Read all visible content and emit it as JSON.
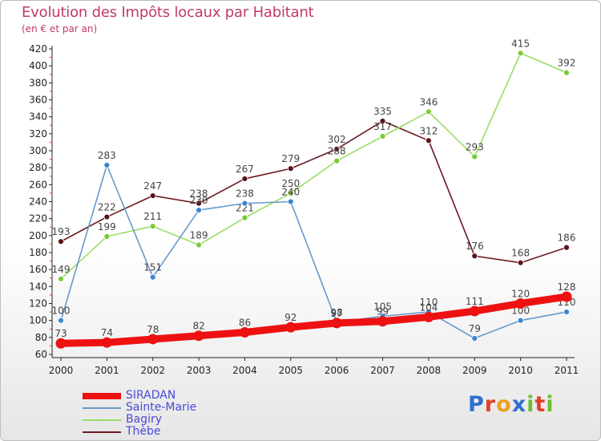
{
  "header": {
    "title": "Evolution des Impôts locaux par Habitant",
    "subtitle": "(en € et par an)"
  },
  "logo": {
    "text": "Proxiti",
    "letter_colors": [
      "#2f6fd0",
      "#e0402a",
      "#f0a020",
      "#2f6fd0",
      "#6bbf30",
      "#e0402a",
      "#6bbf30"
    ]
  },
  "chart_data": {
    "type": "line",
    "x": [
      "2000",
      "2001",
      "2002",
      "2003",
      "2004",
      "2005",
      "2006",
      "2007",
      "2008",
      "2009",
      "2010",
      "2011"
    ],
    "ylim": [
      60,
      420
    ],
    "yticks": [
      60,
      80,
      100,
      120,
      140,
      160,
      180,
      200,
      220,
      240,
      260,
      280,
      300,
      320,
      340,
      360,
      380,
      400,
      420
    ],
    "grid": false,
    "legend": "bottom-left",
    "series": [
      {
        "name": "Thèbe",
        "color": "#6b1a1f",
        "point_color": "#5a1418",
        "thick": false,
        "values": [
          193,
          222,
          247,
          238,
          267,
          279,
          302,
          335,
          312,
          176,
          168,
          186
        ]
      },
      {
        "name": "Bagiry",
        "color": "#99dd66",
        "point_color": "#77cc33",
        "thick": false,
        "values": [
          149,
          199,
          211,
          189,
          221,
          250,
          288,
          317,
          346,
          293,
          415,
          392
        ]
      },
      {
        "name": "Sainte-Marie",
        "color": "#6699cc",
        "point_color": "#3a86d0",
        "thick": false,
        "values": [
          100,
          283,
          151,
          230,
          238,
          240,
          98,
          105,
          110,
          79,
          100,
          110
        ]
      },
      {
        "name": "SIRADAN",
        "color": "#ee1111",
        "point_color": "#ee1111",
        "thick": true,
        "values": [
          73,
          74,
          78,
          82,
          86,
          92,
          97,
          99,
          104,
          111,
          120,
          128
        ]
      }
    ],
    "legend_order": [
      "SIRADAN",
      "Sainte-Marie",
      "Bagiry",
      "Thèbe"
    ]
  }
}
